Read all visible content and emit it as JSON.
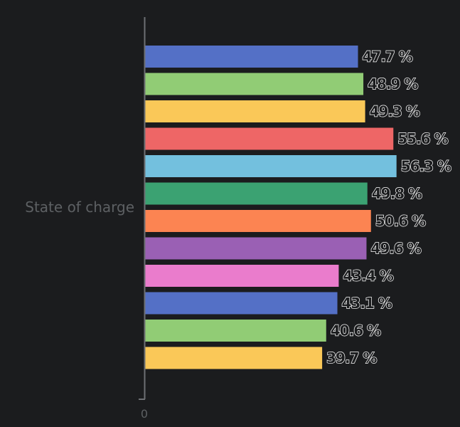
{
  "chart_data": {
    "type": "bar",
    "orientation": "horizontal",
    "categories": [
      "State of charge"
    ],
    "series": [
      {
        "values": [
          47.7
        ],
        "label": "47.7 %",
        "color": "#5470c6"
      },
      {
        "values": [
          48.9
        ],
        "label": "48.9 %",
        "color": "#91cc75"
      },
      {
        "values": [
          49.3
        ],
        "label": "49.3 %",
        "color": "#fac858"
      },
      {
        "values": [
          55.6
        ],
        "label": "55.6 %",
        "color": "#ee6666"
      },
      {
        "values": [
          56.3
        ],
        "label": "56.3 %",
        "color": "#73c0de"
      },
      {
        "values": [
          49.8
        ],
        "label": "49.8 %",
        "color": "#3ba272"
      },
      {
        "values": [
          50.6
        ],
        "label": "50.6 %",
        "color": "#fc8452"
      },
      {
        "values": [
          49.6
        ],
        "label": "49.6 %",
        "color": "#9a60b4"
      },
      {
        "values": [
          43.4
        ],
        "label": "43.4 %",
        "color": "#ea7ccc"
      },
      {
        "values": [
          43.1
        ],
        "label": "43.1 %",
        "color": "#5470c6"
      },
      {
        "values": [
          40.6
        ],
        "label": "40.6 %",
        "color": "#91cc75"
      },
      {
        "values": [
          39.7
        ],
        "label": "39.7 %",
        "color": "#fac858"
      }
    ],
    "x_ticks": [
      "0"
    ],
    "unit": "%",
    "grid": false,
    "legend": "none",
    "axis_color": "#6e7074",
    "background": "#1b1c1e"
  }
}
